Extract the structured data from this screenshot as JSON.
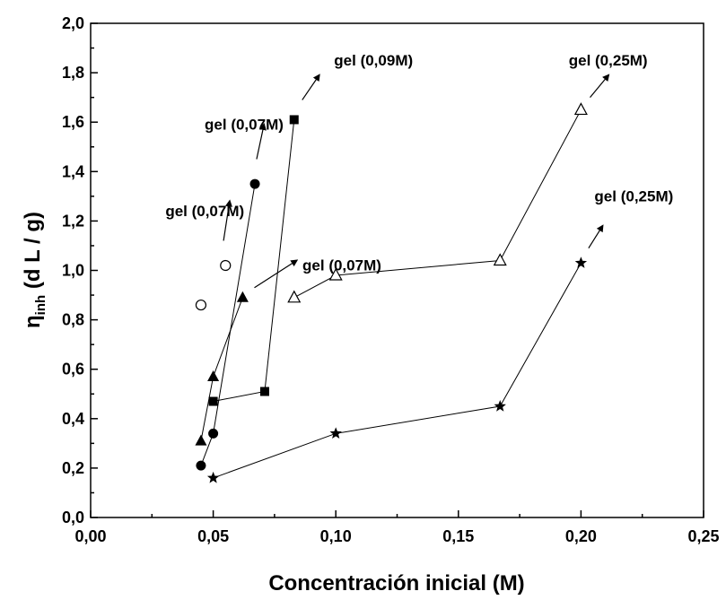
{
  "chart_data": {
    "type": "scatter",
    "title": "",
    "xlabel": "Concentración inicial (M)",
    "ylabel": {
      "symbol": "η",
      "subscript": "inh",
      "unit": " (d L / g)"
    },
    "xlim": [
      0.0,
      0.25
    ],
    "ylim": [
      0.0,
      2.0
    ],
    "grid": false,
    "legend": "none",
    "x_ticks": [
      {
        "value": 0.0,
        "label": "0,00"
      },
      {
        "value": 0.05,
        "label": "0,05"
      },
      {
        "value": 0.1,
        "label": "0,10"
      },
      {
        "value": 0.15,
        "label": "0,15"
      },
      {
        "value": 0.2,
        "label": "0,20"
      },
      {
        "value": 0.25,
        "label": "0,25"
      }
    ],
    "y_ticks": [
      {
        "value": 0.0,
        "label": "0,0"
      },
      {
        "value": 0.2,
        "label": "0,2"
      },
      {
        "value": 0.4,
        "label": "0,4"
      },
      {
        "value": 0.6,
        "label": "0,6"
      },
      {
        "value": 0.8,
        "label": "0,8"
      },
      {
        "value": 1.0,
        "label": "1,0"
      },
      {
        "value": 1.2,
        "label": "1,2"
      },
      {
        "value": 1.4,
        "label": "1,4"
      },
      {
        "value": 1.6,
        "label": "1,6"
      },
      {
        "value": 1.8,
        "label": "1,8"
      },
      {
        "value": 2.0,
        "label": "2,0"
      }
    ],
    "series": [
      {
        "marker": "circle-open",
        "connected": false,
        "points": [
          [
            0.045,
            0.86
          ],
          [
            0.055,
            1.02
          ]
        ]
      },
      {
        "marker": "circle-filled",
        "connected": true,
        "points": [
          [
            0.045,
            0.21
          ],
          [
            0.05,
            0.34
          ],
          [
            0.067,
            1.35
          ]
        ]
      },
      {
        "marker": "triangle-filled",
        "connected": true,
        "points": [
          [
            0.045,
            0.31
          ],
          [
            0.05,
            0.57
          ],
          [
            0.062,
            0.89
          ]
        ]
      },
      {
        "marker": "square-filled",
        "connected": true,
        "points": [
          [
            0.05,
            0.47
          ],
          [
            0.071,
            0.51
          ],
          [
            0.083,
            1.61
          ]
        ]
      },
      {
        "marker": "triangle-open",
        "connected": true,
        "points": [
          [
            0.083,
            0.89
          ],
          [
            0.1,
            0.98
          ],
          [
            0.167,
            1.04
          ],
          [
            0.2,
            1.65
          ]
        ]
      },
      {
        "marker": "star-filled",
        "connected": true,
        "points": [
          [
            0.05,
            0.16
          ],
          [
            0.1,
            0.34
          ],
          [
            0.167,
            0.45
          ],
          [
            0.2,
            1.03
          ]
        ]
      }
    ],
    "annotations": [
      {
        "text": "gel (0,07M)",
        "text_at": [
          0.0305,
          1.22
        ],
        "arrow_from": [
          0.0542,
          1.12
        ],
        "arrow_to": [
          0.0567,
          1.28
        ]
      },
      {
        "text": "gel (0,07M)",
        "text_at": [
          0.0465,
          1.57
        ],
        "arrow_from": [
          0.0677,
          1.45
        ],
        "arrow_to": [
          0.0707,
          1.59
        ]
      },
      {
        "text": "gel (0,09M)",
        "text_at": [
          0.0993,
          1.83
        ],
        "arrow_from": [
          0.0863,
          1.69
        ],
        "arrow_to": [
          0.0932,
          1.79
        ]
      },
      {
        "text": "gel (0,07M)",
        "text_at": [
          0.0864,
          1.0
        ],
        "arrow_from": [
          0.0668,
          0.93
        ],
        "arrow_to": [
          0.084,
          1.04
        ]
      },
      {
        "text": "gel (0,25M)",
        "text_at": [
          0.195,
          1.83
        ],
        "arrow_from": [
          0.2037,
          1.7
        ],
        "arrow_to": [
          0.2112,
          1.79
        ]
      },
      {
        "text": "gel (0,25M)",
        "text_at": [
          0.2055,
          1.28
        ],
        "arrow_from": [
          0.2031,
          1.09
        ],
        "arrow_to": [
          0.2088,
          1.18
        ]
      }
    ]
  }
}
